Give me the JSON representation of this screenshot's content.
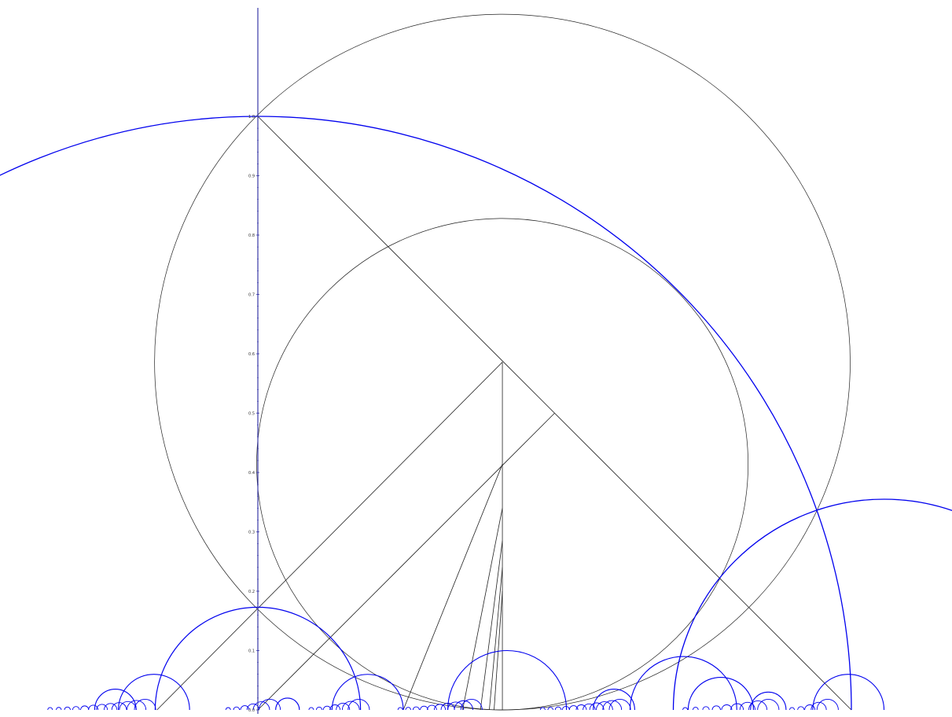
{
  "diagram": {
    "axis": {
      "tick_values": [
        0.0,
        0.1,
        0.2,
        0.3,
        0.4,
        0.5,
        0.6,
        0.7,
        0.8,
        0.9,
        1.0
      ],
      "tick_labels": [
        "0.0",
        "0.1",
        "0.2",
        "0.3",
        "0.4",
        "0.5",
        "0.6",
        "0.7",
        "0.8",
        "0.9",
        "1.0"
      ]
    },
    "colors": {
      "axis": "#3a3aa8",
      "construction": "#222222",
      "geodesic": "#0000ee"
    }
  }
}
